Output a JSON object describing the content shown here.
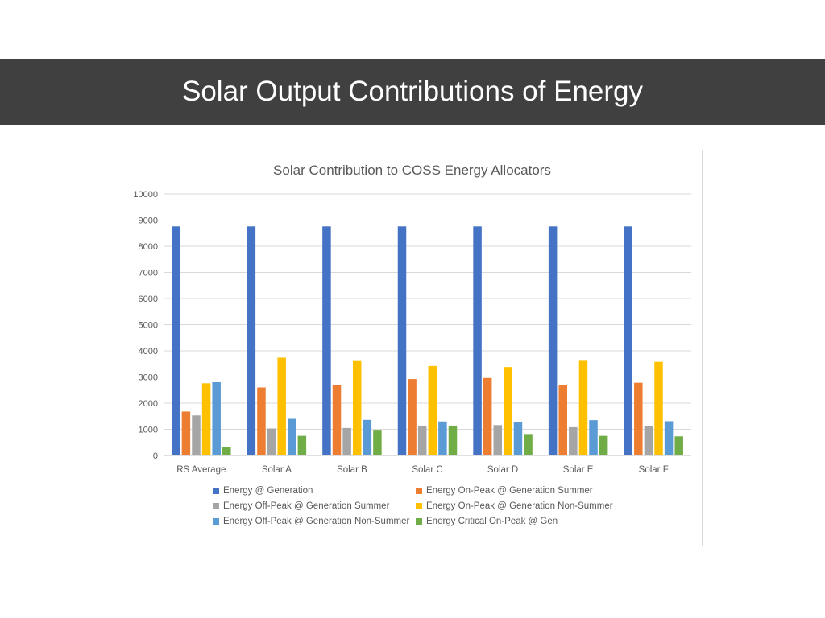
{
  "slide": {
    "title": "Solar Output Contributions of Energy"
  },
  "chart_data": {
    "type": "bar",
    "title": "Solar Contribution to COSS Energy Allocators",
    "categories": [
      "RS Average",
      "Solar A",
      "Solar B",
      "Solar C",
      "Solar D",
      "Solar E",
      "Solar F"
    ],
    "ylim": [
      0,
      10000
    ],
    "yticks": [
      0,
      1000,
      2000,
      3000,
      4000,
      5000,
      6000,
      7000,
      8000,
      9000,
      10000
    ],
    "grid": true,
    "legend_position": "bottom",
    "series": [
      {
        "name": "Energy @ Generation",
        "color": "#4472C4",
        "values": [
          8760,
          8760,
          8760,
          8760,
          8760,
          8760,
          8760
        ]
      },
      {
        "name": "Energy On-Peak @ Generation Summer",
        "color": "#ED7D31",
        "values": [
          1680,
          2600,
          2700,
          2920,
          2960,
          2680,
          2780
        ]
      },
      {
        "name": "Energy Off-Peak @ Generation Summer",
        "color": "#A5A5A5",
        "values": [
          1530,
          1030,
          1050,
          1140,
          1160,
          1080,
          1110
        ]
      },
      {
        "name": "Energy On-Peak @ Generation Non-Summer",
        "color": "#FFC000",
        "values": [
          2760,
          3740,
          3640,
          3420,
          3380,
          3650,
          3580
        ]
      },
      {
        "name": "Energy Off-Peak @ Generation Non-Summer",
        "color": "#5B9BD5",
        "values": [
          2800,
          1400,
          1360,
          1300,
          1280,
          1350,
          1310
        ]
      },
      {
        "name": "Energy Critical On-Peak @ Gen",
        "color": "#70AD47",
        "values": [
          320,
          750,
          980,
          1140,
          820,
          750,
          730
        ]
      }
    ]
  }
}
